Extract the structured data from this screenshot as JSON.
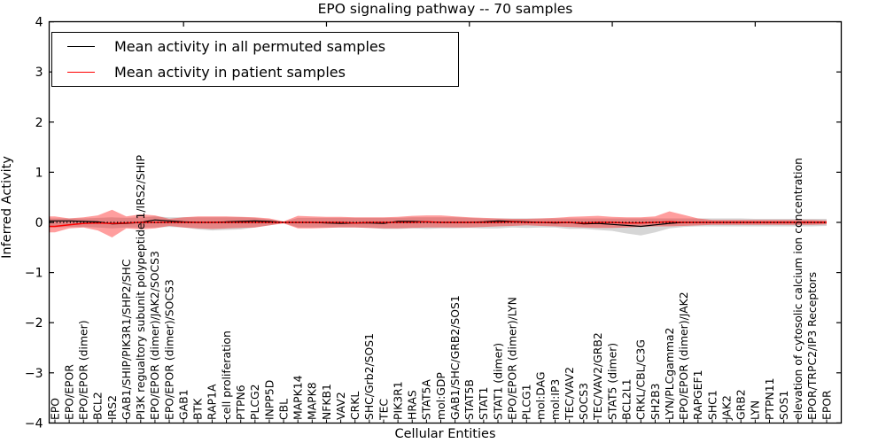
{
  "chart_data": {
    "type": "line",
    "title": "EPO signaling pathway -- 70 samples",
    "xlabel": "Cellular Entities",
    "ylabel": "Inferred Activity",
    "ylim": [
      -4,
      4
    ],
    "yticks": [
      4,
      3,
      2,
      1,
      0,
      -1,
      -2,
      -3,
      -4
    ],
    "ytick_labels": [
      "4",
      "3",
      "2",
      "1",
      "0",
      "−1",
      "−2",
      "−3",
      "−4"
    ],
    "grid": false,
    "legend_position": "upper left",
    "legend": [
      {
        "label": "Mean activity in all permuted samples",
        "color": "#000000"
      },
      {
        "label": "Mean activity in patient samples",
        "color": "#ff0000"
      }
    ],
    "zero_line": {
      "y": 0,
      "style": "dotted",
      "color": "#000000"
    },
    "categories": [
      "EPO",
      "EPO/EPOR",
      "EPO/EPOR (dimer)",
      "BCL2",
      "IRS2",
      "GAB1/SHIP/PIK3R1/SHP2/SHC",
      "PI3K regualtory subunit polypeptide 1/IRS2/SHIP",
      "EPO/EPOR (dimer)/JAK2/SOCS3",
      "EPO/EPOR (dimer)/SOCS3",
      "GAB1",
      "BTK",
      "RAP1A",
      "cell proliferation",
      "PTPN6",
      "PLCG2",
      "INPP5D",
      "CBL",
      "MAPK14",
      "MAPK8",
      "NFKB1",
      "VAV2",
      "CRKL",
      "SHC/Grb2/SOS1",
      "TEC",
      "PIK3R1",
      "HRAS",
      "STAT5A",
      "mol:GDP",
      "GAB1/SHC/GRB2/SOS1",
      "STAT5B",
      "STAT1",
      "STAT1 (dimer)",
      "EPO/EPOR (dimer)/LYN",
      "PLCG1",
      "mol:DAG",
      "mol:IP3",
      "TEC/VAV2",
      "SOCS3",
      "TEC/VAV2/GRB2",
      "STAT5 (dimer)",
      "BCL2L1",
      "CRKL/CBL/C3G",
      "SH2B3",
      "LYN/PLCgamma2",
      "EPO/EPOR (dimer)/JAK2",
      "RAPGEF1",
      "SHC1",
      "JAK2",
      "GRB2",
      "LYN",
      "PTPN11",
      "SOS1",
      "elevation of cytosolic calcium ion concentration",
      "EPOR/TRPC2/IP3 Receptors",
      "EPOR"
    ],
    "series": [
      {
        "name": "Mean activity in all permuted samples",
        "color": "#000000",
        "values": [
          0.03,
          0.03,
          0.02,
          0.01,
          -0.03,
          -0.02,
          0.0,
          0.05,
          0.03,
          0.01,
          0.0,
          0.0,
          0.01,
          0.02,
          0.03,
          0.02,
          0.0,
          0.0,
          0.0,
          -0.01,
          -0.02,
          -0.01,
          -0.01,
          -0.02,
          0.02,
          0.02,
          0.01,
          0.0,
          0.0,
          0.0,
          0.01,
          0.03,
          0.02,
          0.01,
          0.0,
          -0.01,
          0.0,
          -0.03,
          -0.02,
          -0.04,
          -0.06,
          -0.08,
          -0.05,
          -0.02,
          0.0,
          0.0,
          0.0,
          0.0,
          0.0,
          0.0,
          0.0,
          0.0,
          0.0,
          0.0,
          0.0
        ]
      },
      {
        "name": "Mean activity in patient samples",
        "color": "#ff0000",
        "values": [
          -0.08,
          -0.05,
          -0.02,
          -0.01,
          -0.02,
          -0.01,
          0,
          0,
          0,
          0,
          0,
          0,
          0,
          0,
          0,
          0,
          0,
          0,
          0,
          0,
          0,
          -0.01,
          0,
          0,
          0,
          0,
          0.01,
          0,
          0,
          0,
          0,
          0,
          0.01,
          0,
          0,
          0,
          0,
          -0.01,
          0,
          0,
          -0.01,
          -0.01,
          0,
          0.01,
          0,
          0,
          0,
          0,
          0,
          0,
          0,
          0,
          0,
          0,
          0
        ]
      }
    ],
    "bands": [
      {
        "name": "permuted-samples-std",
        "color": "#808080",
        "opacity": 0.32,
        "upper": [
          0.08,
          0.08,
          0.08,
          0.09,
          0.1,
          0.09,
          0.1,
          0.12,
          0.1,
          0.1,
          0.1,
          0.1,
          0.1,
          0.1,
          0.09,
          0.06,
          0.01,
          0.09,
          0.09,
          0.09,
          0.09,
          0.09,
          0.09,
          0.09,
          0.09,
          0.1,
          0.1,
          0.1,
          0.1,
          0.09,
          0.08,
          0.08,
          0.08,
          0.08,
          0.08,
          0.08,
          0.08,
          0.08,
          0.08,
          0.08,
          0.08,
          0.08,
          0.08,
          0.08,
          0.08,
          0.08,
          0.08,
          0.08,
          0.08,
          0.07,
          0.07,
          0.07,
          0.07,
          0.07,
          0.07
        ],
        "lower": [
          -0.1,
          -0.09,
          -0.09,
          -0.1,
          -0.12,
          -0.1,
          -0.1,
          -0.1,
          -0.09,
          -0.1,
          -0.14,
          -0.16,
          -0.15,
          -0.14,
          -0.1,
          -0.06,
          -0.01,
          -0.1,
          -0.1,
          -0.1,
          -0.1,
          -0.1,
          -0.11,
          -0.13,
          -0.13,
          -0.12,
          -0.13,
          -0.12,
          -0.12,
          -0.11,
          -0.12,
          -0.12,
          -0.1,
          -0.11,
          -0.1,
          -0.1,
          -0.13,
          -0.13,
          -0.15,
          -0.17,
          -0.22,
          -0.26,
          -0.2,
          -0.12,
          -0.09,
          -0.08,
          -0.08,
          -0.08,
          -0.08,
          -0.08,
          -0.08,
          -0.08,
          -0.08,
          -0.08,
          -0.07
        ]
      },
      {
        "name": "patient-samples-std",
        "color": "#ff0000",
        "opacity": 0.38,
        "upper": [
          0.12,
          0.08,
          0.1,
          0.14,
          0.25,
          0.12,
          0.16,
          0.14,
          0.07,
          0.1,
          0.12,
          0.12,
          0.12,
          0.11,
          0.1,
          0.08,
          0.02,
          0.13,
          0.12,
          0.11,
          0.11,
          0.1,
          0.1,
          0.1,
          0.11,
          0.13,
          0.14,
          0.14,
          0.12,
          0.1,
          0.09,
          0.08,
          0.07,
          0.07,
          0.08,
          0.09,
          0.11,
          0.12,
          0.13,
          0.11,
          0.1,
          0.1,
          0.12,
          0.22,
          0.15,
          0.08,
          0.05,
          0.05,
          0.05,
          0.05,
          0.05,
          0.05,
          0.05,
          0.05,
          0.04
        ],
        "lower": [
          -0.2,
          -0.12,
          -0.1,
          -0.16,
          -0.3,
          -0.12,
          -0.14,
          -0.12,
          -0.07,
          -0.1,
          -0.12,
          -0.13,
          -0.12,
          -0.11,
          -0.1,
          -0.06,
          -0.02,
          -0.12,
          -0.12,
          -0.11,
          -0.1,
          -0.1,
          -0.11,
          -0.12,
          -0.12,
          -0.11,
          -0.1,
          -0.1,
          -0.1,
          -0.1,
          -0.09,
          -0.08,
          -0.07,
          -0.06,
          -0.07,
          -0.08,
          -0.09,
          -0.1,
          -0.11,
          -0.11,
          -0.1,
          -0.09,
          -0.08,
          -0.08,
          -0.07,
          -0.06,
          -0.05,
          -0.05,
          -0.05,
          -0.05,
          -0.05,
          -0.05,
          -0.05,
          -0.05,
          -0.04
        ]
      }
    ]
  }
}
